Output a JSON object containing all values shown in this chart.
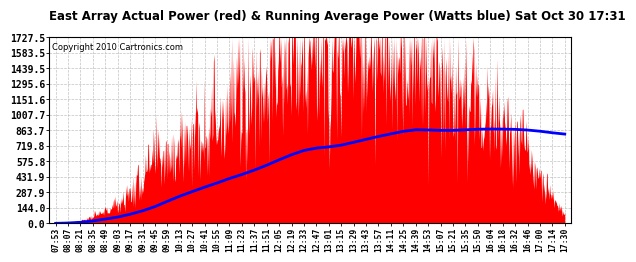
{
  "title": "East Array Actual Power (red) & Running Average Power (Watts blue) Sat Oct 30 17:31",
  "copyright": "Copyright 2010 Cartronics.com",
  "yticks": [
    0.0,
    144.0,
    287.9,
    431.9,
    575.8,
    719.8,
    863.7,
    1007.7,
    1151.6,
    1295.6,
    1439.5,
    1583.5,
    1727.5
  ],
  "ylim": [
    0,
    1727.5
  ],
  "bg_color": "#ffffff",
  "grid_color": "#bbbbbb",
  "bar_color": "#ff0000",
  "line_color": "#0000ff",
  "x_labels": [
    "07:53",
    "08:07",
    "08:21",
    "08:35",
    "08:49",
    "09:03",
    "09:17",
    "09:31",
    "09:45",
    "09:59",
    "10:13",
    "10:27",
    "10:41",
    "10:55",
    "11:09",
    "11:23",
    "11:37",
    "11:51",
    "12:05",
    "12:19",
    "12:33",
    "12:47",
    "13:01",
    "13:15",
    "13:29",
    "13:43",
    "13:57",
    "14:11",
    "14:25",
    "14:39",
    "14:53",
    "15:07",
    "15:21",
    "15:35",
    "15:50",
    "16:04",
    "16:18",
    "16:32",
    "16:46",
    "17:00",
    "17:14",
    "17:30"
  ],
  "peak_power": 1727.5,
  "avg_peak": 880.0
}
